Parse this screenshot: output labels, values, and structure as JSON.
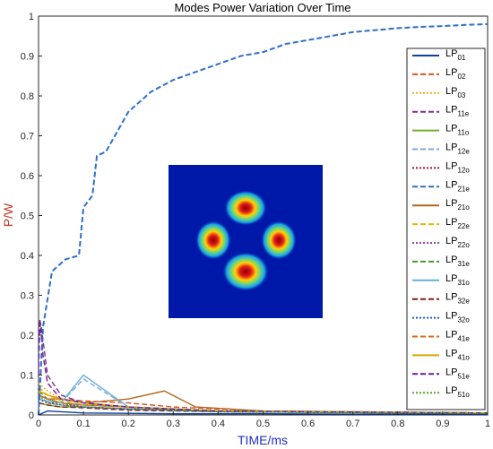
{
  "chart_data": {
    "type": "line",
    "title": "Modes Power Variation Over Time",
    "xlabel": "TIME/ms",
    "ylabel": "P/W",
    "xlim": [
      0,
      1
    ],
    "ylim": [
      0,
      1
    ],
    "xticks": [
      "0",
      "0.1",
      "0.2",
      "0.3",
      "0.4",
      "0.5",
      "0.6",
      "0.7",
      "0.8",
      "0.9",
      "1"
    ],
    "yticks": [
      "0",
      "0.1",
      "0.2",
      "0.3",
      "0.4",
      "0.5",
      "0.6",
      "0.7",
      "0.8",
      "0.9",
      "1"
    ],
    "grid": false,
    "legend_position": "right",
    "series": [
      {
        "name": "LP",
        "sub": "01",
        "color": "#0b3fa0",
        "dash": "solid",
        "x": [
          0,
          0.02,
          0.05,
          0.1,
          0.2,
          0.3,
          0.5,
          0.7,
          1.0
        ],
        "y": [
          0.0,
          0.01,
          0.008,
          0.005,
          0.004,
          0.003,
          0.003,
          0.002,
          0.002
        ]
      },
      {
        "name": "LP",
        "sub": "02",
        "color": "#d95319",
        "dash": "dash",
        "x": [
          0,
          0.02,
          0.05,
          0.1,
          0.2,
          0.3,
          0.5,
          1.0
        ],
        "y": [
          0.06,
          0.05,
          0.04,
          0.035,
          0.03,
          0.02,
          0.01,
          0.005
        ]
      },
      {
        "name": "LP",
        "sub": "03",
        "color": "#edb120",
        "dash": "dot",
        "x": [
          0,
          0.02,
          0.05,
          0.1,
          0.2,
          0.4,
          1.0
        ],
        "y": [
          0.08,
          0.06,
          0.04,
          0.03,
          0.02,
          0.01,
          0.005
        ]
      },
      {
        "name": "LP",
        "sub": "11e",
        "color": "#7e2f8e",
        "dash": "dash",
        "x": [
          0,
          0.005,
          0.02,
          0.05,
          0.1,
          0.2,
          0.4,
          1.0
        ],
        "y": [
          0.2,
          0.23,
          0.1,
          0.05,
          0.03,
          0.02,
          0.01,
          0.005
        ]
      },
      {
        "name": "LP",
        "sub": "11o",
        "color": "#77ac30",
        "dash": "solid",
        "x": [
          0,
          0.02,
          0.05,
          0.1,
          0.2,
          0.4,
          1.0
        ],
        "y": [
          0.03,
          0.025,
          0.02,
          0.02,
          0.015,
          0.01,
          0.005
        ]
      },
      {
        "name": "LP",
        "sub": "12e",
        "color": "#7fa8e8",
        "dash": "dash",
        "x": [
          0,
          0.02,
          0.05,
          0.1,
          0.2,
          0.4,
          1.0
        ],
        "y": [
          0.05,
          0.04,
          0.03,
          0.09,
          0.02,
          0.01,
          0.005
        ]
      },
      {
        "name": "LP",
        "sub": "12o",
        "color": "#a2142f",
        "dash": "dot",
        "x": [
          0,
          0.02,
          0.05,
          0.1,
          0.2,
          0.4,
          1.0
        ],
        "y": [
          0.04,
          0.03,
          0.03,
          0.02,
          0.015,
          0.01,
          0.005
        ]
      },
      {
        "name": "LP",
        "sub": "21e",
        "color": "#2f6fc7",
        "dash": "dash",
        "x": [
          0,
          0.01,
          0.03,
          0.06,
          0.09,
          0.1,
          0.12,
          0.13,
          0.15,
          0.17,
          0.2,
          0.25,
          0.3,
          0.35,
          0.4,
          0.45,
          0.5,
          0.55,
          0.6,
          0.65,
          0.7,
          0.75,
          0.8,
          0.85,
          0.9,
          0.95,
          1.0
        ],
        "y": [
          0.0,
          0.22,
          0.36,
          0.39,
          0.4,
          0.52,
          0.55,
          0.65,
          0.66,
          0.7,
          0.76,
          0.81,
          0.84,
          0.86,
          0.88,
          0.9,
          0.91,
          0.93,
          0.94,
          0.95,
          0.96,
          0.965,
          0.97,
          0.973,
          0.975,
          0.978,
          0.98
        ]
      },
      {
        "name": "LP",
        "sub": "21o",
        "color": "#b5651d",
        "dash": "solid",
        "x": [
          0,
          0.02,
          0.05,
          0.1,
          0.2,
          0.28,
          0.35,
          0.5,
          1.0
        ],
        "y": [
          0.05,
          0.04,
          0.04,
          0.03,
          0.04,
          0.06,
          0.02,
          0.01,
          0.005
        ]
      },
      {
        "name": "LP",
        "sub": "22e",
        "color": "#e8b800",
        "dash": "dash",
        "x": [
          0,
          0.02,
          0.05,
          0.1,
          0.2,
          0.4,
          1.0
        ],
        "y": [
          0.07,
          0.05,
          0.035,
          0.025,
          0.02,
          0.01,
          0.005
        ]
      },
      {
        "name": "LP",
        "sub": "22o",
        "color": "#8e44ad",
        "dash": "dot",
        "x": [
          0,
          0.02,
          0.05,
          0.1,
          0.2,
          0.4,
          1.0
        ],
        "y": [
          0.05,
          0.04,
          0.03,
          0.02,
          0.015,
          0.008,
          0.004
        ]
      },
      {
        "name": "LP",
        "sub": "31e",
        "color": "#4a9a2a",
        "dash": "dash",
        "x": [
          0,
          0.02,
          0.05,
          0.1,
          0.2,
          0.4,
          1.0
        ],
        "y": [
          0.06,
          0.04,
          0.03,
          0.025,
          0.02,
          0.01,
          0.005
        ]
      },
      {
        "name": "LP",
        "sub": "31o",
        "color": "#6baed6",
        "dash": "solid",
        "x": [
          0,
          0.02,
          0.05,
          0.1,
          0.2,
          0.4,
          1.0
        ],
        "y": [
          0.04,
          0.035,
          0.03,
          0.1,
          0.02,
          0.01,
          0.005
        ]
      },
      {
        "name": "LP",
        "sub": "32e",
        "color": "#8b1a1a",
        "dash": "dash",
        "x": [
          0,
          0.02,
          0.05,
          0.1,
          0.2,
          0.4,
          1.0
        ],
        "y": [
          0.03,
          0.025,
          0.02,
          0.018,
          0.012,
          0.008,
          0.004
        ]
      },
      {
        "name": "LP",
        "sub": "32o",
        "color": "#1f5fbf",
        "dash": "dot",
        "x": [
          0,
          0.02,
          0.05,
          0.1,
          0.2,
          0.4,
          1.0
        ],
        "y": [
          0.04,
          0.03,
          0.025,
          0.02,
          0.015,
          0.008,
          0.004
        ]
      },
      {
        "name": "LP",
        "sub": "41e",
        "color": "#d96b1a",
        "dash": "dash",
        "x": [
          0,
          0.02,
          0.05,
          0.1,
          0.2,
          0.4,
          1.0
        ],
        "y": [
          0.05,
          0.04,
          0.03,
          0.025,
          0.02,
          0.01,
          0.005
        ]
      },
      {
        "name": "LP",
        "sub": "41o",
        "color": "#d9a800",
        "dash": "solid",
        "x": [
          0,
          0.02,
          0.05,
          0.1,
          0.2,
          0.4,
          1.0
        ],
        "y": [
          0.06,
          0.05,
          0.04,
          0.03,
          0.02,
          0.01,
          0.005
        ]
      },
      {
        "name": "LP",
        "sub": "51e",
        "color": "#6a1b9a",
        "dash": "dash",
        "x": [
          0,
          0.003,
          0.01,
          0.02,
          0.05,
          0.1,
          0.2,
          0.4,
          1.0
        ],
        "y": [
          0.1,
          0.24,
          0.15,
          0.08,
          0.04,
          0.03,
          0.02,
          0.01,
          0.005
        ]
      },
      {
        "name": "LP",
        "sub": "51o",
        "color": "#5aa02c",
        "dash": "dot",
        "x": [
          0,
          0.02,
          0.05,
          0.1,
          0.2,
          0.4,
          1.0
        ],
        "y": [
          0.05,
          0.03,
          0.025,
          0.02,
          0.015,
          0.008,
          0.004
        ]
      }
    ],
    "inset": {
      "description_color_map": "jet",
      "lobes": 4
    }
  }
}
